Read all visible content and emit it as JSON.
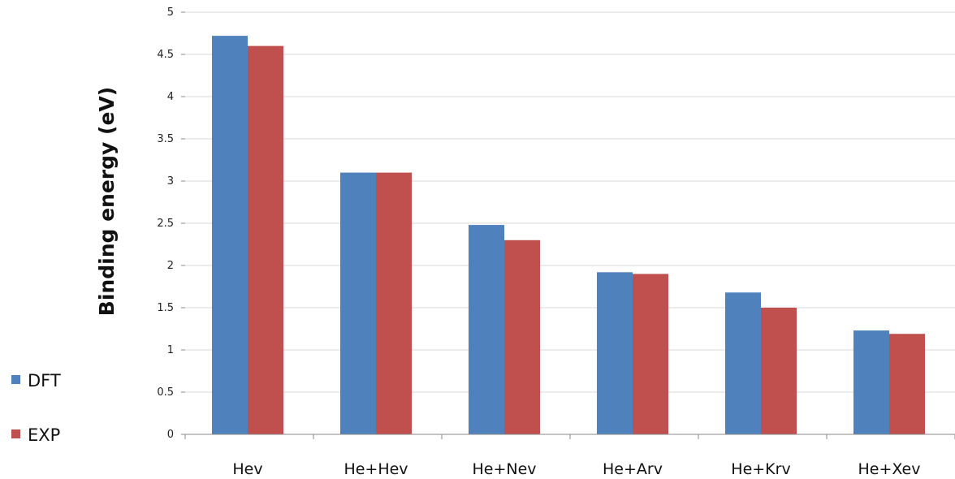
{
  "chart_data": {
    "type": "bar",
    "title": "",
    "xlabel": "",
    "ylabel": "Binding energy (eV)",
    "ylim": [
      0,
      5
    ],
    "yticks": [
      "0",
      "0.5",
      "1",
      "1.5",
      "2",
      "2.5",
      "3",
      "3.5",
      "4",
      "4.5",
      "5"
    ],
    "categories": [
      "Hev",
      "He+Hev",
      "He+Nev",
      "He+Arv",
      "He+Krv",
      "He+Xev"
    ],
    "series": [
      {
        "name": "DFT",
        "color": "#4F81BD",
        "values": [
          4.72,
          3.1,
          2.48,
          1.92,
          1.68,
          1.23
        ]
      },
      {
        "name": "EXP",
        "color": "#C0504D",
        "values": [
          4.6,
          3.1,
          2.3,
          1.9,
          1.5,
          1.19
        ]
      }
    ],
    "grid": true,
    "legend_position": "left"
  }
}
